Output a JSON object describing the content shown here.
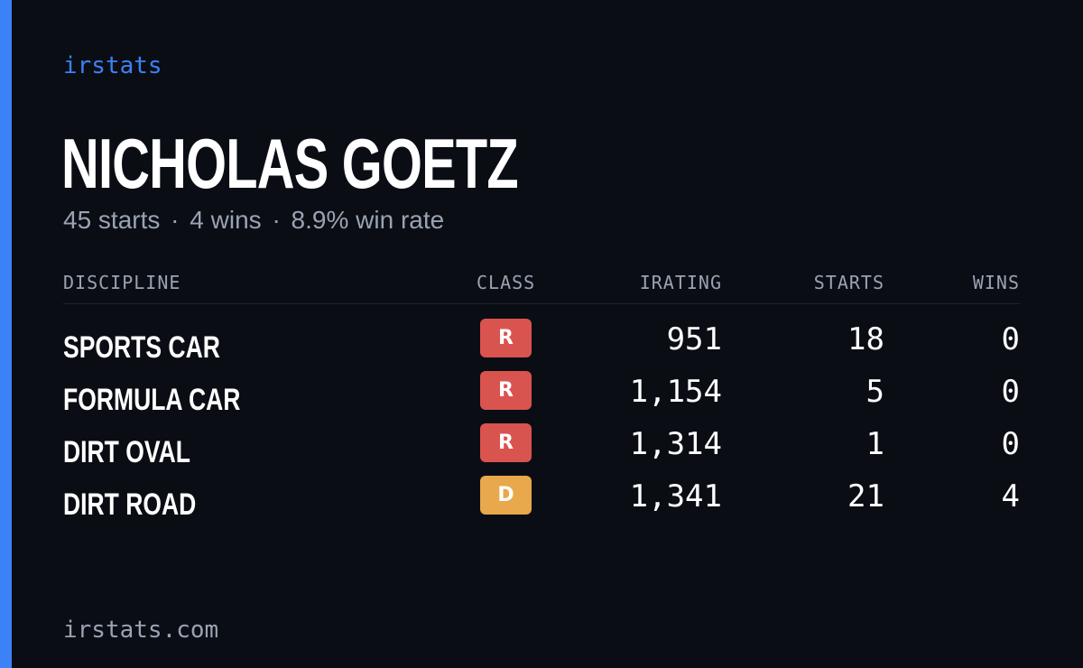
{
  "brand": "irstats",
  "driver": {
    "name": "NICHOLAS GOETZ",
    "summary": {
      "starts": "45 starts",
      "wins": "4 wins",
      "win_rate": "8.9% win rate",
      "separator": "·"
    }
  },
  "table": {
    "headers": {
      "discipline": "DISCIPLINE",
      "class": "CLASS",
      "irating": "IRATING",
      "starts": "STARTS",
      "wins": "WINS"
    },
    "rows": [
      {
        "discipline": "SPORTS CAR",
        "class": "R",
        "class_color": "#d9534f",
        "irating": "951",
        "starts": "18",
        "wins": "0"
      },
      {
        "discipline": "FORMULA CAR",
        "class": "R",
        "class_color": "#d9534f",
        "irating": "1,154",
        "starts": "5",
        "wins": "0"
      },
      {
        "discipline": "DIRT OVAL",
        "class": "R",
        "class_color": "#d9534f",
        "irating": "1,314",
        "starts": "1",
        "wins": "0"
      },
      {
        "discipline": "DIRT ROAD",
        "class": "D",
        "class_color": "#e8a84b",
        "irating": "1,341",
        "starts": "21",
        "wins": "4"
      }
    ]
  },
  "footer": "irstats.com",
  "colors": {
    "accent": "#3b82f6",
    "background": "#0a0d14",
    "muted_text": "#9aa3b2"
  }
}
